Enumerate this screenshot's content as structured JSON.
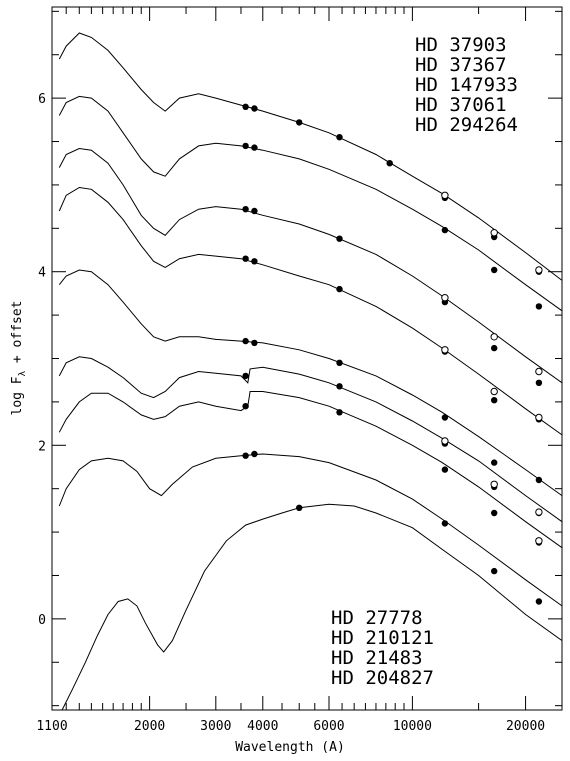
{
  "chart_data": {
    "type": "line",
    "title": "",
    "xlabel": "Wavelength (A)",
    "ylabel_main": "log F",
    "ylabel_sub": "λ",
    "ylabel_rest": " + offset",
    "x_scale": "log",
    "xlim": [
      1100,
      25000
    ],
    "ylim": [
      -1.05,
      7.05
    ],
    "x_tick_labels": [
      {
        "value": 1100,
        "label": "1100"
      },
      {
        "value": 2000,
        "label": "2000"
      },
      {
        "value": 3000,
        "label": "3000"
      },
      {
        "value": 4000,
        "label": "4000"
      },
      {
        "value": 6000,
        "label": "6000"
      },
      {
        "value": 10000,
        "label": "10000"
      },
      {
        "value": 20000,
        "label": "20000"
      }
    ],
    "x_minor_ticks": [
      1200,
      1300,
      1400,
      1500,
      1600,
      1700,
      1800,
      1900,
      2500,
      3500,
      4500,
      5000,
      5500,
      6500,
      7000,
      7500,
      8000,
      8500,
      9000,
      9500,
      15000,
      25000
    ],
    "y_tick_labels": [
      {
        "value": 0,
        "label": "0"
      },
      {
        "value": 2,
        "label": "2"
      },
      {
        "value": 4,
        "label": "4"
      },
      {
        "value": 6,
        "label": "6"
      }
    ],
    "legend_top": [
      "HD 37903",
      "HD 37367",
      "HD 147933",
      "HD 37061",
      "HD 294264"
    ],
    "legend_bottom": [
      "HD 27778",
      "HD 210121",
      "HD 21483",
      "HD 204827"
    ],
    "series": [
      {
        "points": [
          [
            1150,
            6.45
          ],
          [
            1200,
            6.6
          ],
          [
            1300,
            6.75
          ],
          [
            1400,
            6.7
          ],
          [
            1550,
            6.55
          ],
          [
            1700,
            6.35
          ],
          [
            1900,
            6.1
          ],
          [
            2050,
            5.95
          ],
          [
            2200,
            5.85
          ],
          [
            2400,
            6.0
          ],
          [
            2700,
            6.05
          ],
          [
            3000,
            6.0
          ],
          [
            3500,
            5.92
          ],
          [
            4000,
            5.85
          ],
          [
            5000,
            5.72
          ],
          [
            6000,
            5.6
          ],
          [
            8000,
            5.35
          ],
          [
            10000,
            5.1
          ],
          [
            12000,
            4.9
          ],
          [
            15000,
            4.62
          ],
          [
            20000,
            4.22
          ],
          [
            25000,
            3.9
          ]
        ]
      },
      {
        "points": [
          [
            1150,
            5.8
          ],
          [
            1200,
            5.95
          ],
          [
            1300,
            6.02
          ],
          [
            1400,
            6.0
          ],
          [
            1550,
            5.85
          ],
          [
            1700,
            5.6
          ],
          [
            1900,
            5.3
          ],
          [
            2050,
            5.15
          ],
          [
            2200,
            5.1
          ],
          [
            2400,
            5.3
          ],
          [
            2700,
            5.45
          ],
          [
            3000,
            5.48
          ],
          [
            3500,
            5.45
          ],
          [
            4000,
            5.4
          ],
          [
            5000,
            5.3
          ],
          [
            6000,
            5.18
          ],
          [
            8000,
            4.95
          ],
          [
            10000,
            4.72
          ],
          [
            12000,
            4.52
          ],
          [
            15000,
            4.25
          ],
          [
            20000,
            3.85
          ],
          [
            25000,
            3.55
          ]
        ]
      },
      {
        "points": [
          [
            1150,
            5.2
          ],
          [
            1200,
            5.35
          ],
          [
            1300,
            5.42
          ],
          [
            1400,
            5.4
          ],
          [
            1550,
            5.25
          ],
          [
            1700,
            5.0
          ],
          [
            1900,
            4.65
          ],
          [
            2050,
            4.5
          ],
          [
            2200,
            4.42
          ],
          [
            2400,
            4.6
          ],
          [
            2700,
            4.72
          ],
          [
            3000,
            4.75
          ],
          [
            3500,
            4.72
          ],
          [
            4000,
            4.65
          ],
          [
            5000,
            4.55
          ],
          [
            6000,
            4.43
          ],
          [
            8000,
            4.2
          ],
          [
            10000,
            3.95
          ],
          [
            12000,
            3.72
          ],
          [
            15000,
            3.42
          ],
          [
            20000,
            3.02
          ],
          [
            25000,
            2.72
          ]
        ]
      },
      {
        "points": [
          [
            1150,
            4.7
          ],
          [
            1200,
            4.88
          ],
          [
            1300,
            4.97
          ],
          [
            1400,
            4.95
          ],
          [
            1550,
            4.8
          ],
          [
            1700,
            4.6
          ],
          [
            1900,
            4.3
          ],
          [
            2050,
            4.12
          ],
          [
            2200,
            4.05
          ],
          [
            2400,
            4.15
          ],
          [
            2700,
            4.2
          ],
          [
            3000,
            4.18
          ],
          [
            3500,
            4.15
          ],
          [
            4000,
            4.08
          ],
          [
            5000,
            3.95
          ],
          [
            6000,
            3.85
          ],
          [
            8000,
            3.6
          ],
          [
            10000,
            3.35
          ],
          [
            12000,
            3.12
          ],
          [
            15000,
            2.82
          ],
          [
            20000,
            2.42
          ],
          [
            25000,
            2.12
          ]
        ]
      },
      {
        "points": [
          [
            1150,
            3.85
          ],
          [
            1200,
            3.95
          ],
          [
            1300,
            4.02
          ],
          [
            1400,
            4.0
          ],
          [
            1550,
            3.85
          ],
          [
            1700,
            3.65
          ],
          [
            1900,
            3.4
          ],
          [
            2050,
            3.25
          ],
          [
            2200,
            3.2
          ],
          [
            2400,
            3.25
          ],
          [
            2700,
            3.25
          ],
          [
            3000,
            3.22
          ],
          [
            3500,
            3.2
          ],
          [
            4000,
            3.18
          ],
          [
            5000,
            3.1
          ],
          [
            6000,
            3.0
          ],
          [
            8000,
            2.8
          ],
          [
            10000,
            2.58
          ],
          [
            12000,
            2.38
          ],
          [
            15000,
            2.1
          ],
          [
            20000,
            1.72
          ],
          [
            25000,
            1.42
          ]
        ]
      },
      {
        "points": [
          [
            1150,
            2.8
          ],
          [
            1200,
            2.95
          ],
          [
            1300,
            3.02
          ],
          [
            1400,
            3.0
          ],
          [
            1550,
            2.9
          ],
          [
            1700,
            2.78
          ],
          [
            1900,
            2.6
          ],
          [
            2050,
            2.55
          ],
          [
            2200,
            2.62
          ],
          [
            2400,
            2.78
          ],
          [
            2700,
            2.85
          ],
          [
            3000,
            2.83
          ],
          [
            3500,
            2.8
          ],
          [
            3650,
            2.72
          ],
          [
            3700,
            2.88
          ],
          [
            4000,
            2.9
          ],
          [
            5000,
            2.82
          ],
          [
            6000,
            2.72
          ],
          [
            8000,
            2.5
          ],
          [
            10000,
            2.28
          ],
          [
            12000,
            2.08
          ],
          [
            15000,
            1.82
          ],
          [
            20000,
            1.42
          ],
          [
            25000,
            1.12
          ]
        ]
      },
      {
        "points": [
          [
            1150,
            2.15
          ],
          [
            1200,
            2.3
          ],
          [
            1300,
            2.5
          ],
          [
            1400,
            2.6
          ],
          [
            1550,
            2.6
          ],
          [
            1700,
            2.5
          ],
          [
            1900,
            2.35
          ],
          [
            2050,
            2.3
          ],
          [
            2200,
            2.33
          ],
          [
            2400,
            2.45
          ],
          [
            2700,
            2.5
          ],
          [
            3000,
            2.45
          ],
          [
            3500,
            2.4
          ],
          [
            3650,
            2.45
          ],
          [
            3700,
            2.62
          ],
          [
            4000,
            2.62
          ],
          [
            5000,
            2.55
          ],
          [
            6000,
            2.45
          ],
          [
            8000,
            2.22
          ],
          [
            10000,
            2.0
          ],
          [
            12000,
            1.8
          ],
          [
            15000,
            1.52
          ],
          [
            20000,
            1.12
          ],
          [
            25000,
            0.82
          ]
        ]
      },
      {
        "points": [
          [
            1150,
            1.3
          ],
          [
            1200,
            1.5
          ],
          [
            1300,
            1.72
          ],
          [
            1400,
            1.82
          ],
          [
            1550,
            1.85
          ],
          [
            1700,
            1.82
          ],
          [
            1850,
            1.7
          ],
          [
            2000,
            1.5
          ],
          [
            2150,
            1.42
          ],
          [
            2300,
            1.55
          ],
          [
            2600,
            1.75
          ],
          [
            3000,
            1.85
          ],
          [
            3500,
            1.88
          ],
          [
            4000,
            1.9
          ],
          [
            5000,
            1.87
          ],
          [
            6000,
            1.8
          ],
          [
            8000,
            1.6
          ],
          [
            10000,
            1.38
          ],
          [
            12000,
            1.15
          ],
          [
            15000,
            0.85
          ],
          [
            20000,
            0.45
          ],
          [
            25000,
            0.15
          ]
        ]
      },
      {
        "points": [
          [
            1170,
            -1.05
          ],
          [
            1250,
            -0.8
          ],
          [
            1350,
            -0.5
          ],
          [
            1450,
            -0.2
          ],
          [
            1550,
            0.05
          ],
          [
            1650,
            0.2
          ],
          [
            1750,
            0.23
          ],
          [
            1850,
            0.15
          ],
          [
            1950,
            -0.05
          ],
          [
            2100,
            -0.3
          ],
          [
            2180,
            -0.38
          ],
          [
            2300,
            -0.25
          ],
          [
            2500,
            0.1
          ],
          [
            2800,
            0.55
          ],
          [
            3200,
            0.9
          ],
          [
            3600,
            1.08
          ],
          [
            4000,
            1.15
          ],
          [
            4500,
            1.22
          ],
          [
            5000,
            1.28
          ],
          [
            6000,
            1.32
          ],
          [
            7000,
            1.3
          ],
          [
            8000,
            1.22
          ],
          [
            10000,
            1.05
          ],
          [
            12000,
            0.8
          ],
          [
            15000,
            0.5
          ],
          [
            20000,
            0.05
          ],
          [
            25000,
            -0.25
          ]
        ]
      }
    ],
    "markers_filled": [
      [
        3600,
        5.9
      ],
      [
        3800,
        5.88
      ],
      [
        5000,
        5.72
      ],
      [
        6400,
        5.55
      ],
      [
        8700,
        5.25
      ],
      [
        12200,
        4.85
      ],
      [
        16500,
        4.4
      ],
      [
        21700,
        4.0
      ],
      [
        3600,
        5.45
      ],
      [
        3800,
        5.43
      ],
      [
        12200,
        4.48
      ],
      [
        16500,
        4.02
      ],
      [
        21700,
        3.6
      ],
      [
        3600,
        4.72
      ],
      [
        3800,
        4.7
      ],
      [
        6400,
        4.38
      ],
      [
        12200,
        3.65
      ],
      [
        16500,
        3.12
      ],
      [
        21700,
        2.72
      ],
      [
        3600,
        4.15
      ],
      [
        3800,
        4.12
      ],
      [
        6400,
        3.8
      ],
      [
        12200,
        3.08
      ],
      [
        16500,
        2.52
      ],
      [
        21700,
        2.3
      ],
      [
        3600,
        3.2
      ],
      [
        3800,
        3.18
      ],
      [
        6400,
        2.95
      ],
      [
        12200,
        2.32
      ],
      [
        16500,
        1.8
      ],
      [
        21700,
        1.6
      ],
      [
        3600,
        2.8
      ],
      [
        6400,
        2.68
      ],
      [
        12200,
        2.02
      ],
      [
        16500,
        1.52
      ],
      [
        21700,
        1.22
      ],
      [
        3600,
        2.45
      ],
      [
        6400,
        2.38
      ],
      [
        12200,
        1.72
      ],
      [
        16500,
        1.22
      ],
      [
        21700,
        0.88
      ],
      [
        3600,
        1.88
      ],
      [
        3800,
        1.9
      ],
      [
        12200,
        1.1
      ],
      [
        16500,
        0.55
      ],
      [
        21700,
        0.2
      ],
      [
        5000,
        1.28
      ]
    ],
    "markers_open": [
      [
        12200,
        4.88
      ],
      [
        16500,
        4.45
      ],
      [
        21700,
        4.02
      ],
      [
        12200,
        3.7
      ],
      [
        16500,
        3.25
      ],
      [
        21700,
        2.85
      ],
      [
        12200,
        3.1
      ],
      [
        16500,
        2.62
      ],
      [
        21700,
        2.32
      ],
      [
        12200,
        2.05
      ],
      [
        16500,
        1.55
      ],
      [
        21700,
        1.23
      ],
      [
        21700,
        0.9
      ]
    ]
  }
}
